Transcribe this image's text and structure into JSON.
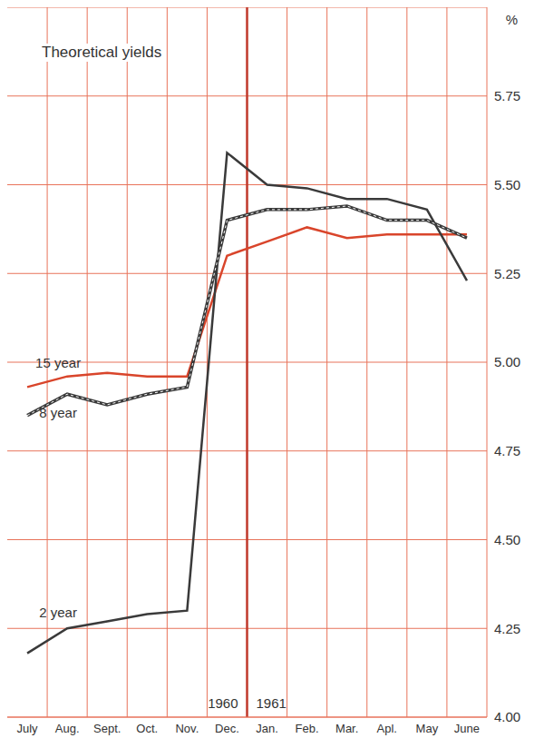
{
  "chart_data": {
    "type": "line",
    "title": "Theoretical yields",
    "y_label": "%",
    "categories": [
      "July",
      "Aug.",
      "Sept.",
      "Oct.",
      "Nov.",
      "Dec.",
      "Jan.",
      "Feb.",
      "Mar.",
      "Apl.",
      "May",
      "June"
    ],
    "series": [
      {
        "name": "15 year",
        "color": "#d9452b",
        "values": [
          4.93,
          4.96,
          4.97,
          4.96,
          4.96,
          5.3,
          5.34,
          5.38,
          5.35,
          5.36,
          5.36,
          5.36
        ]
      },
      {
        "name": "8 year",
        "color": "#3a3a3a",
        "line_style": "dashed",
        "values": [
          4.85,
          4.91,
          4.88,
          4.91,
          4.93,
          5.4,
          5.43,
          5.43,
          5.44,
          5.4,
          5.4,
          5.35
        ]
      },
      {
        "name": "2 year",
        "color": "#3a3a3a",
        "values": [
          4.18,
          4.25,
          4.27,
          4.29,
          4.3,
          5.59,
          5.5,
          5.49,
          5.46,
          5.46,
          5.43,
          5.23
        ]
      }
    ],
    "ylim": [
      4,
      6
    ],
    "yticks": [
      {
        "value": 4,
        "label": "4.00"
      },
      {
        "value": 4.25,
        "label": "4.25"
      },
      {
        "value": 4.5,
        "label": "4.50"
      },
      {
        "value": 4.75,
        "label": "4.75"
      },
      {
        "value": 5,
        "label": "5.00"
      },
      {
        "value": 5.25,
        "label": "5.25"
      },
      {
        "value": 5.5,
        "label": "5.50"
      },
      {
        "value": 5.75,
        "label": "5.75"
      }
    ],
    "grid": true,
    "annotations": [
      {
        "text": "1960",
        "x": "Dec."
      },
      {
        "text": "1961",
        "x": "Jan."
      }
    ]
  }
}
